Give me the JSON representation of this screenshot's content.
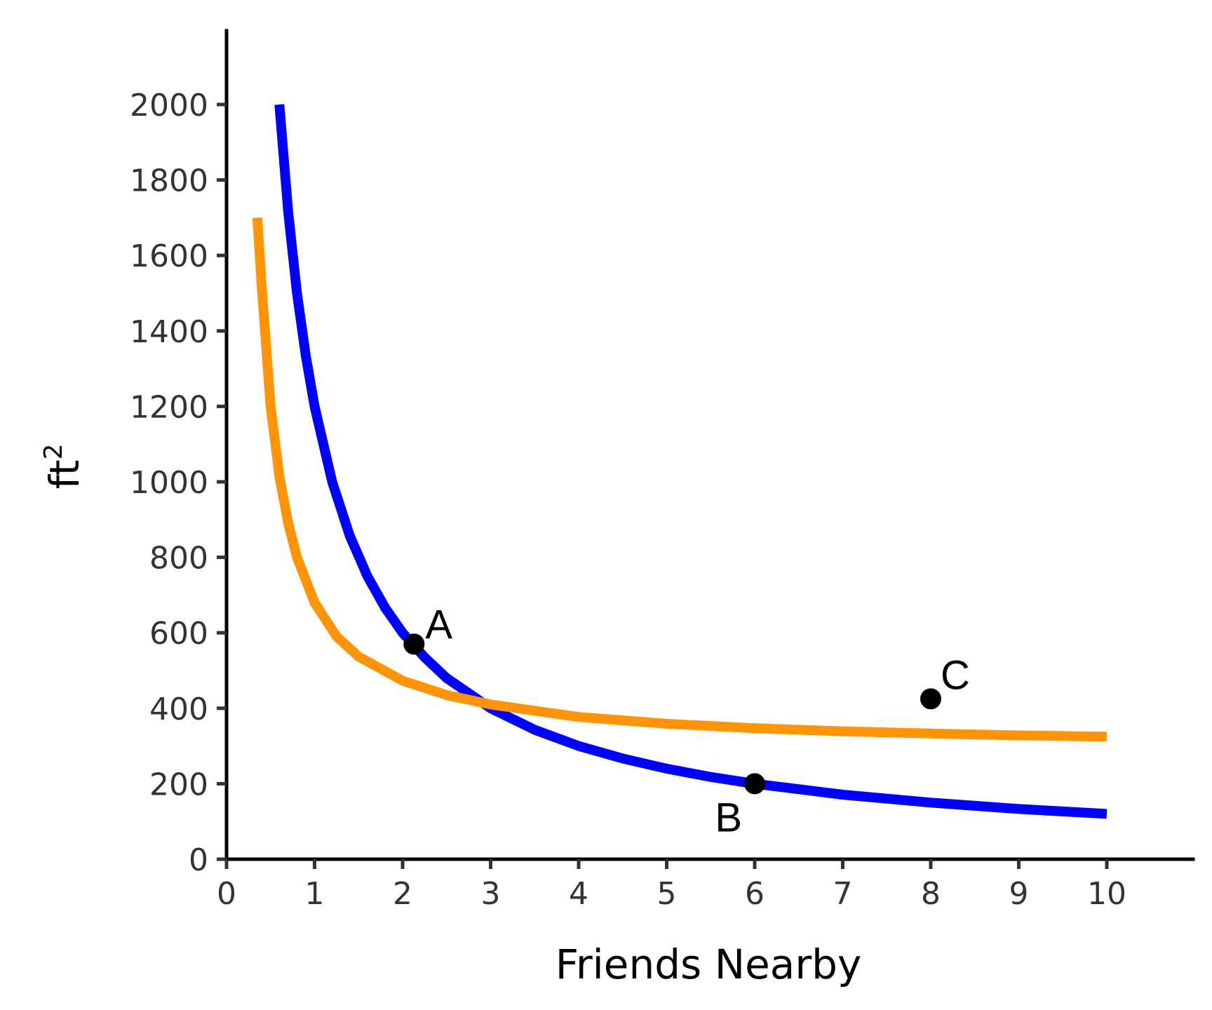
{
  "chart_data": {
    "type": "line",
    "xlabel": "Friends Nearby",
    "ylabel_base": "ft",
    "ylabel_sup": "2",
    "xlim": [
      0,
      11
    ],
    "ylim": [
      0,
      2200
    ],
    "xticks": [
      0,
      1,
      2,
      3,
      4,
      5,
      6,
      7,
      8,
      9,
      10
    ],
    "yticks": [
      0,
      200,
      400,
      600,
      800,
      1000,
      1200,
      1400,
      1600,
      1800,
      2000
    ],
    "grid": false,
    "legend": "none",
    "series": [
      {
        "color": "#0000FF",
        "x": [
          0.6,
          0.7,
          0.8,
          0.9,
          1.0,
          1.2,
          1.4,
          1.6,
          1.8,
          2.0,
          2.25,
          2.5,
          3.0,
          3.5,
          4.0,
          4.5,
          5.0,
          5.5,
          6.0,
          7.0,
          8.0,
          9.0,
          10.0
        ],
        "y": [
          2000,
          1715,
          1500,
          1335,
          1200,
          1000,
          857,
          750,
          667,
          600,
          535,
          480,
          400,
          343,
          300,
          267,
          240,
          218,
          200,
          171,
          150,
          133,
          120
        ]
      },
      {
        "color": "#FF9408",
        "x": [
          0.35,
          0.4,
          0.5,
          0.6,
          0.7,
          0.8,
          1.0,
          1.25,
          1.5,
          2.0,
          2.5,
          3.0,
          4.0,
          5.0,
          6.0,
          7.0,
          8.0,
          9.0,
          10.0
        ],
        "y": [
          1700,
          1515,
          1200,
          1015,
          890,
          800,
          680,
          590,
          537,
          473,
          435,
          410,
          377,
          359,
          347,
          339,
          333,
          328,
          325
        ]
      }
    ],
    "points": [
      {
        "label": "A",
        "x": 2.13,
        "y": 570
      },
      {
        "label": "B",
        "x": 6.0,
        "y": 200
      },
      {
        "label": "C",
        "x": 8.0,
        "y": 425
      }
    ]
  }
}
